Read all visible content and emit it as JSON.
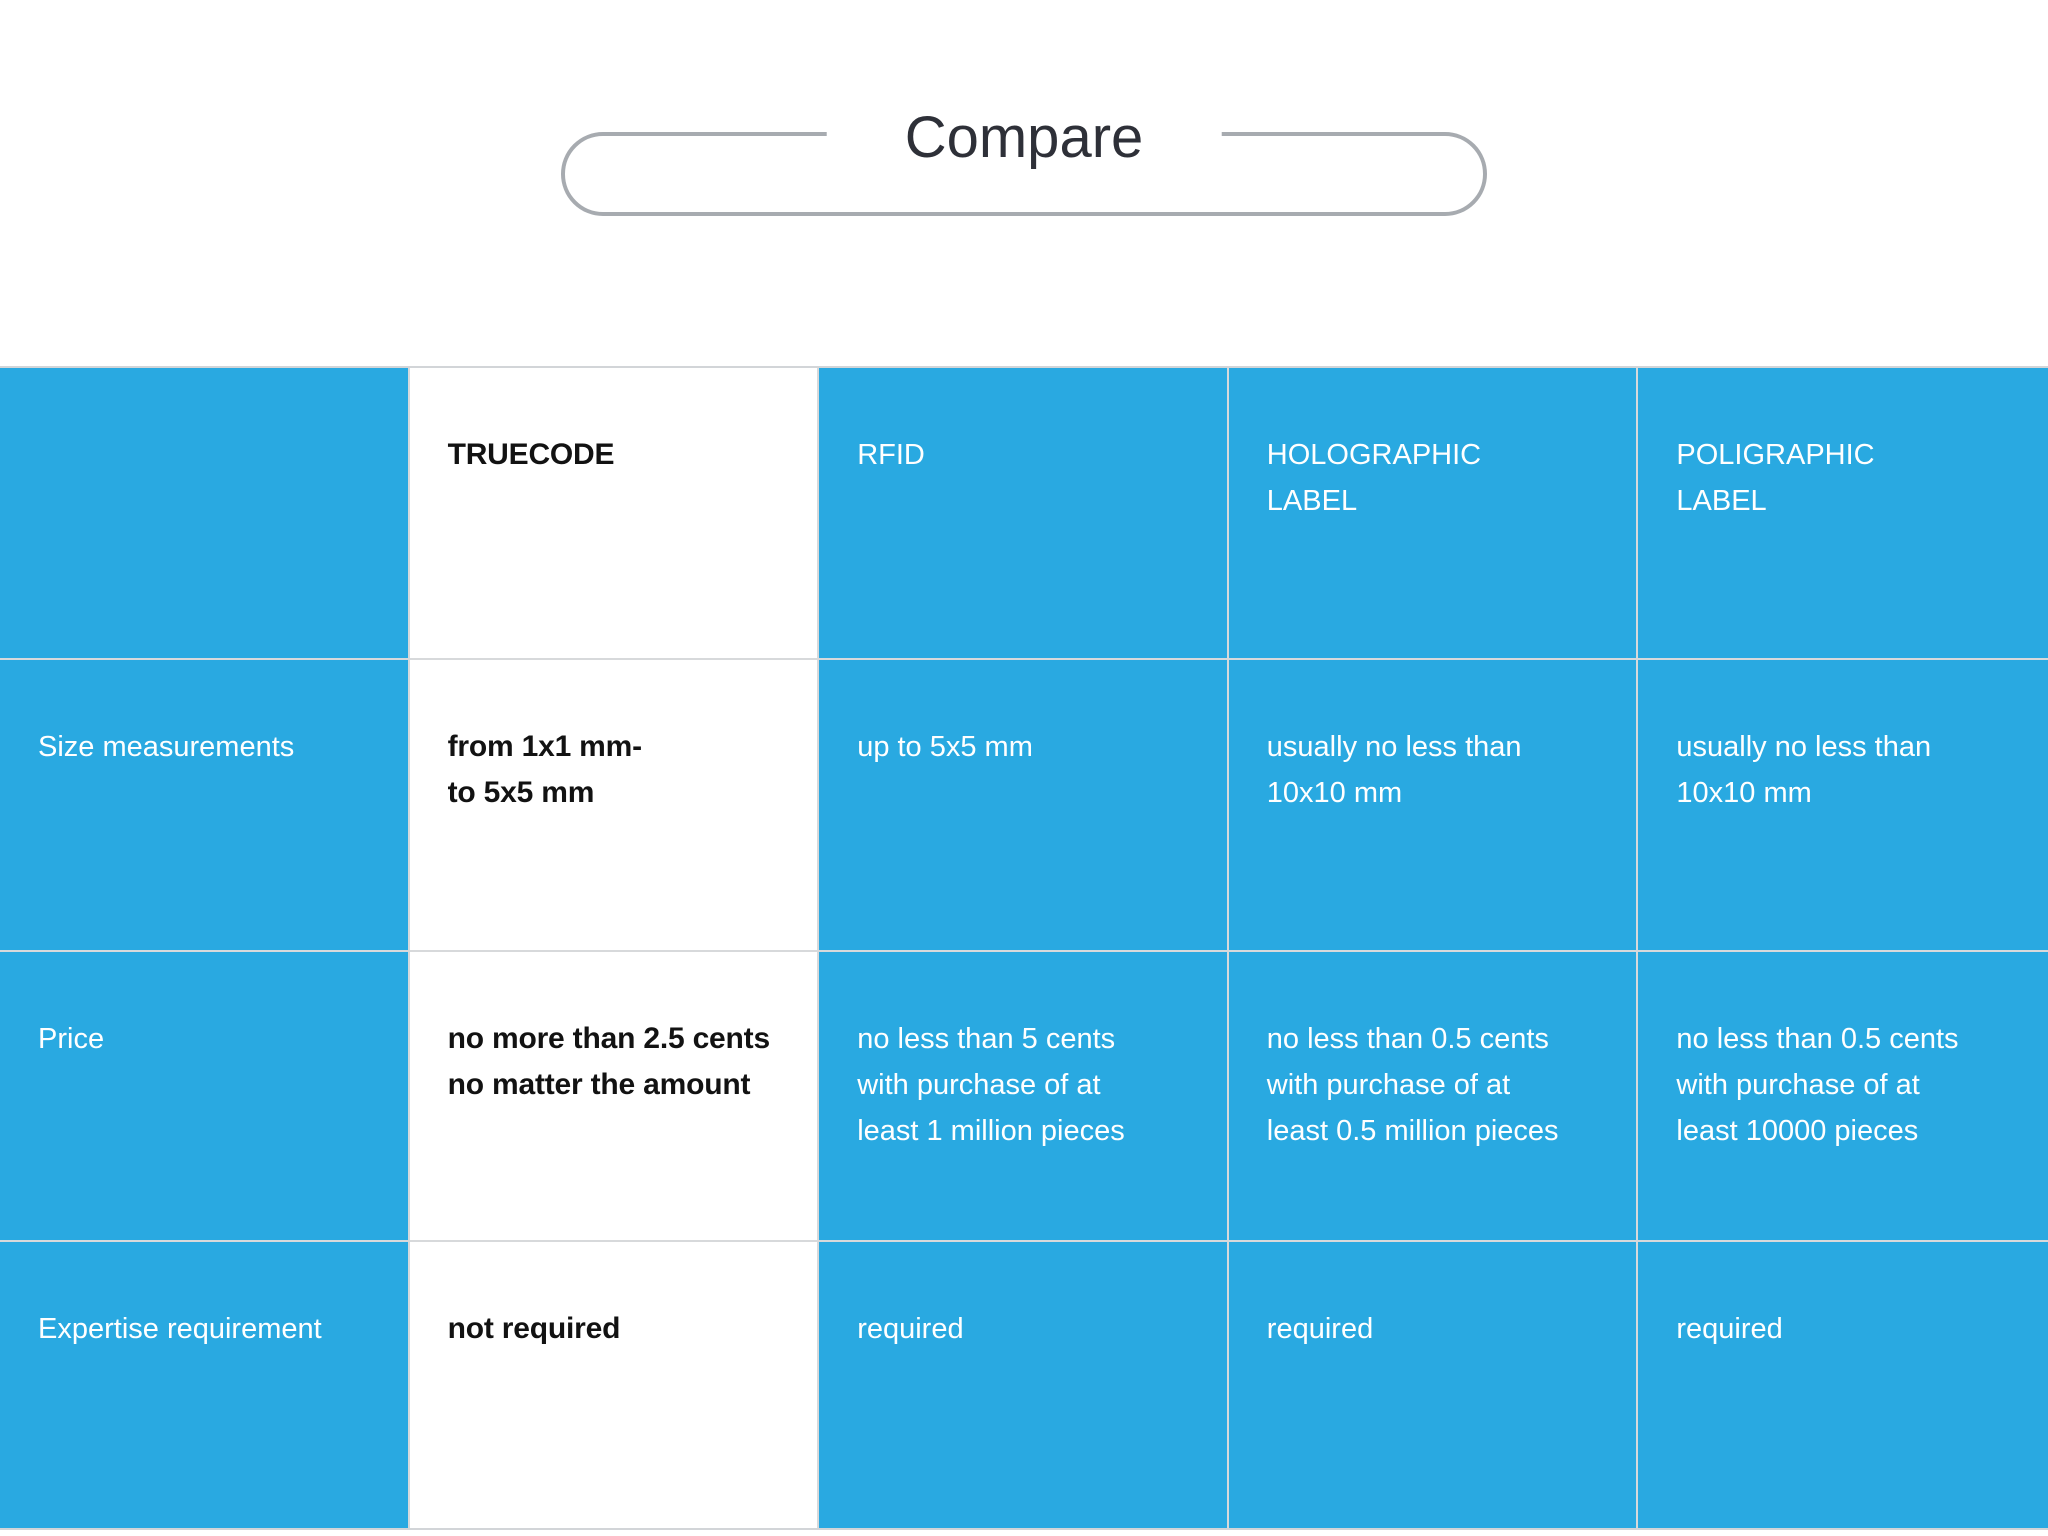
{
  "title": "Compare",
  "colors": {
    "accent_blue": "#29a9e1",
    "grid_line": "#d7d9db",
    "table_edge": "#d2d5d8",
    "pill_border": "#a7abb0",
    "title_text": "#2e3038",
    "dark_text": "#121212",
    "light_text": "#ffffff"
  },
  "table": {
    "header": [
      "",
      "TRUECODE",
      "RFID",
      "HOLOGRAPHIC\nLABEL",
      "POLIGRAPHIC\nLABEL"
    ],
    "rows": [
      {
        "label": "Size measurements",
        "truecode": "from 1x1 mm-\nto 5x5 mm",
        "rfid": "up to 5x5 mm",
        "holographic": "usually no less than\n10x10 mm",
        "poligraphic": "usually no less than\n10x10 mm"
      },
      {
        "label": "Price",
        "truecode": "no more than 2.5 cents\nno matter the amount",
        "rfid": "no less than 5 cents\nwith purchase of at\nleast 1 million pieces",
        "holographic": "no less than 0.5 cents\nwith purchase of at\nleast 0.5 million pieces",
        "poligraphic": "no less than 0.5 cents\nwith purchase of at\nleast 10000 pieces"
      },
      {
        "label": "Expertise requirement",
        "truecode": "not required",
        "rfid": "required",
        "holographic": "required",
        "poligraphic": "required"
      }
    ]
  },
  "chart_data": {
    "type": "table",
    "title": "Compare",
    "columns": [
      "",
      "TRUECODE",
      "RFID",
      "HOLOGRAPHIC LABEL",
      "POLIGRAPHIC LABEL"
    ],
    "rows": [
      [
        "Size measurements",
        "from 1x1 mm- to 5x5 mm",
        "up to 5x5 mm",
        "usually no less than 10x10 mm",
        "usually no less than 10x10 mm"
      ],
      [
        "Price",
        "no more than 2.5 cents no matter the amount",
        "no less than 5 cents with purchase of at least 1 million pieces",
        "no less than 0.5 cents with purchase of at least 0.5 million pieces",
        "no less than 0.5 cents with purchase of at least 10000 pieces"
      ],
      [
        "Expertise requirement",
        "not required",
        "required",
        "required",
        "required"
      ]
    ],
    "highlighted_column": "TRUECODE",
    "layout_hints": {
      "cell_background": "#29a9e1",
      "highlighted_column_background": "#ffffff",
      "highlighted_column_text": "bold black",
      "cell_text": "white",
      "grid": "on",
      "title_style": "centered above table inside rounded pill outline with gap at top center"
    }
  }
}
